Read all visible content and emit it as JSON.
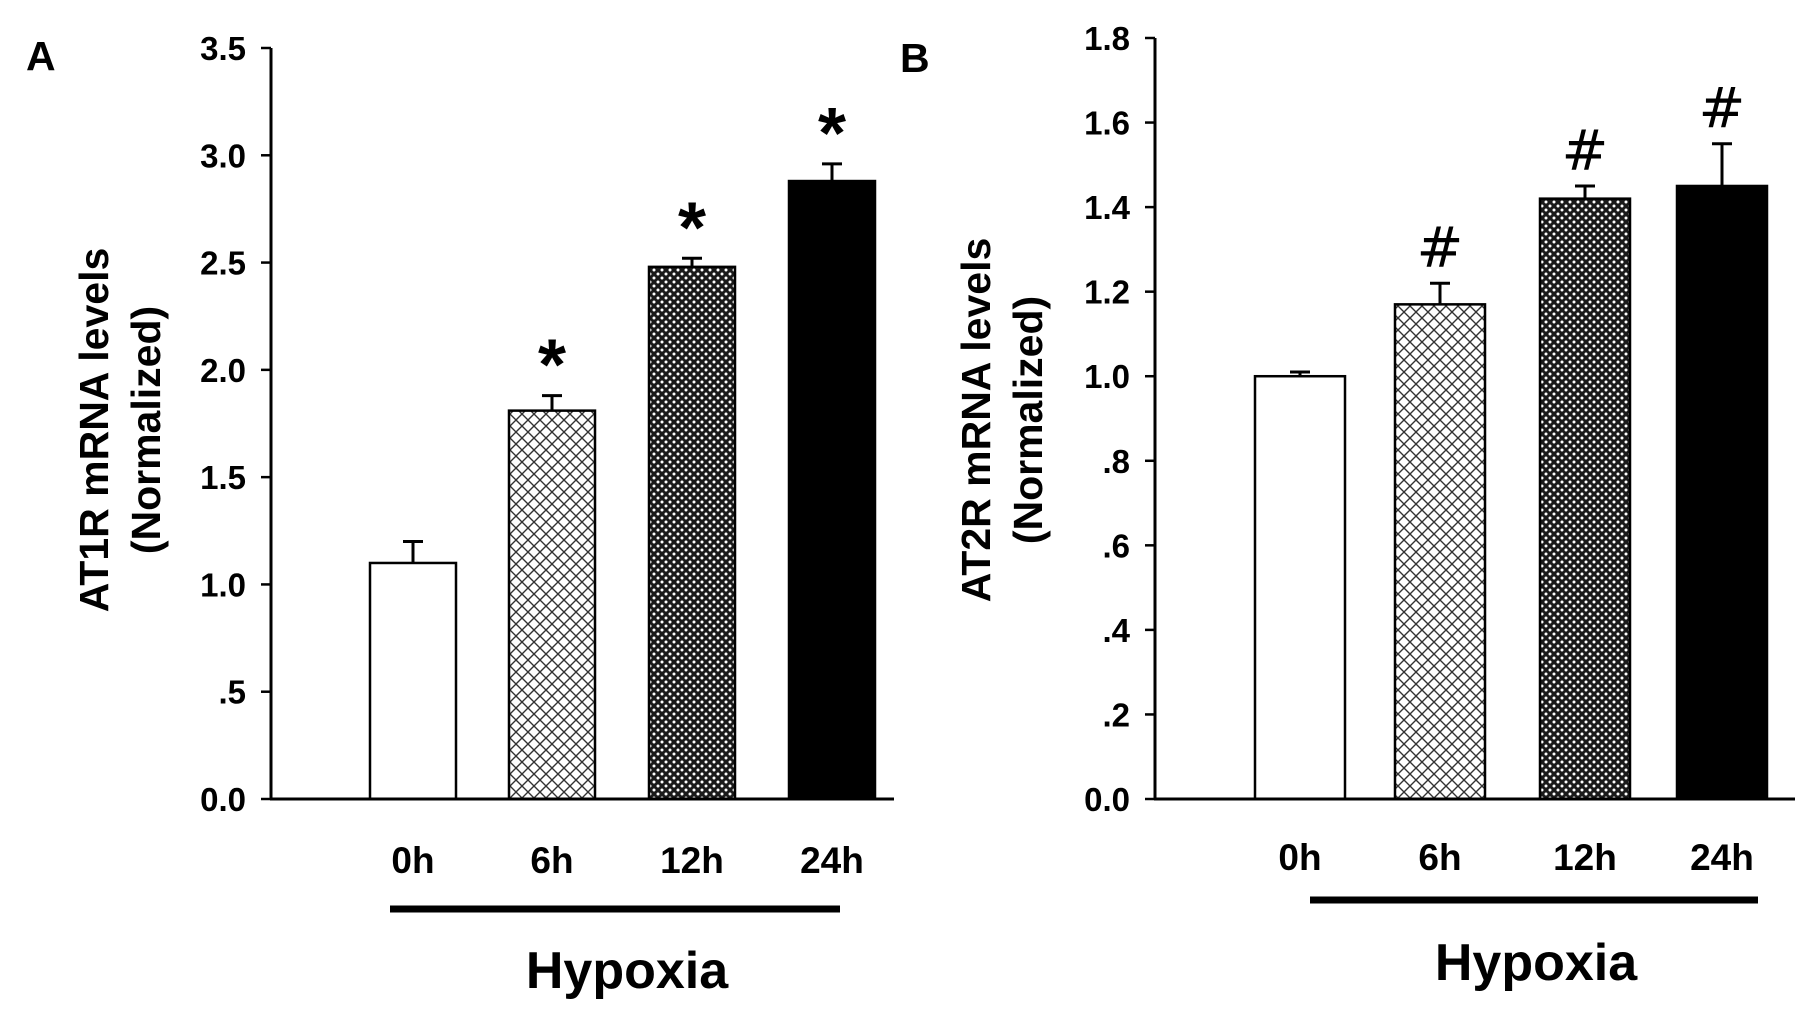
{
  "chart_data": [
    {
      "type": "bar",
      "panel_label": "A",
      "categories": [
        "0h",
        "6h",
        "12h",
        "24h"
      ],
      "values": [
        1.1,
        1.81,
        2.48,
        2.88
      ],
      "errors": [
        0.1,
        0.07,
        0.04,
        0.08
      ],
      "significance": [
        "",
        "*",
        "*",
        "*"
      ],
      "bar_fills": [
        "white",
        "crosshatch",
        "dense-dots",
        "black"
      ],
      "ylabel_line1": "AT1R mRNA levels",
      "ylabel_line2": "(Normalized)",
      "ylim": [
        0,
        3.5
      ],
      "yticks": [
        0,
        0.5,
        1.0,
        1.5,
        2.0,
        2.5,
        3.0,
        3.5
      ],
      "ytick_labels": [
        "0.0",
        ".5",
        "1.0",
        "1.5",
        "2.0",
        "2.5",
        "3.0",
        "3.5"
      ],
      "group_label": "Hypoxia",
      "title": "",
      "grid": false
    },
    {
      "type": "bar",
      "panel_label": "B",
      "categories": [
        "0h",
        "6h",
        "12h",
        "24h"
      ],
      "values": [
        1.0,
        1.17,
        1.42,
        1.45
      ],
      "errors": [
        0.01,
        0.05,
        0.03,
        0.1
      ],
      "significance": [
        "",
        "#",
        "#",
        "#"
      ],
      "bar_fills": [
        "white",
        "crosshatch",
        "dense-dots",
        "black"
      ],
      "ylabel_line1": "AT2R mRNA levels",
      "ylabel_line2": "(Normalized)",
      "ylim": [
        0,
        1.8
      ],
      "yticks": [
        0,
        0.2,
        0.4,
        0.6,
        0.8,
        1.0,
        1.2,
        1.4,
        1.6,
        1.8
      ],
      "ytick_labels": [
        "0.0",
        ".2",
        ".4",
        ".6",
        ".8",
        "1.0",
        "1.2",
        "1.4",
        "1.6",
        "1.8"
      ],
      "group_label": "Hypoxia",
      "title": "",
      "grid": false
    }
  ]
}
